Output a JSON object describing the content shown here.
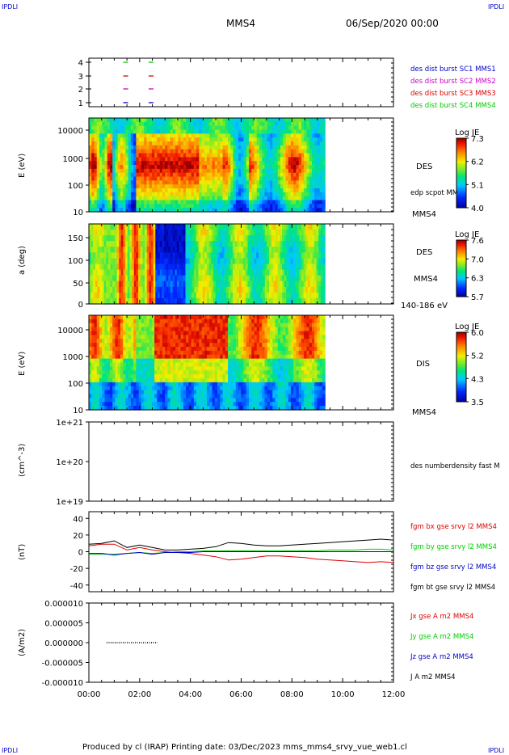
{
  "corner_labels": {
    "top_left": "IPDLI",
    "top_right": "IPDLI",
    "bottom_left": "IPDLI",
    "bottom_right": "IPDLI"
  },
  "header": {
    "spacecraft": "MMS4",
    "date": "06/Sep/2020 00:00"
  },
  "footer": {
    "text": "Produced by cl (IRAP)   Printing date: 03/Dec/2023   mms_mms4_srvy_vue_web1.cl"
  },
  "colors": {
    "red": "#dd0000",
    "green": "#00cc00",
    "blue": "#0000cc",
    "magenta": "#cc00cc",
    "black": "#000000"
  },
  "chart_data": [
    {
      "type": "scatter",
      "panel": "burst availability",
      "ylabel": "",
      "yticks": [
        "4",
        "3",
        "2",
        "1"
      ],
      "ylim": [
        0.6,
        4.4
      ],
      "series": [
        {
          "name": "des dist burst SC1 MMS1",
          "color": "#0000cc",
          "y": 1,
          "x_hours": [
            1.45,
            2.45
          ]
        },
        {
          "name": "des dist burst SC2 MMS2",
          "color": "#cc00cc",
          "y": 2,
          "x_hours": [
            1.45,
            2.45
          ]
        },
        {
          "name": "des dist burst SC3 MMS3",
          "color": "#dd0000",
          "y": 3,
          "x_hours": [
            1.45,
            2.45
          ]
        },
        {
          "name": "des dist burst SC4 MMS4",
          "color": "#00cc00",
          "y": 4,
          "x_hours": [
            1.45,
            2.45
          ]
        }
      ]
    },
    {
      "type": "heatmap",
      "panel": "DES energy spectrogram",
      "ylabel": "E (eV)",
      "yticks": [
        "10000",
        "1000",
        "100",
        "10"
      ],
      "side_labels": [
        "DES",
        "edp scpot MMS4",
        "MMS4"
      ],
      "colorbar": {
        "title": "Log JE",
        "ticks": [
          "7.3",
          "6.2",
          "5.1",
          "4.0"
        ]
      },
      "data_end_hours": 9.3
    },
    {
      "type": "heatmap",
      "panel": "DES pitch angle",
      "ylabel": "a (deg)",
      "yticks": [
        "150",
        "100",
        "50",
        "0"
      ],
      "side_labels": [
        "DES",
        "MMS4",
        "140-186 eV"
      ],
      "colorbar": {
        "title": "Log JE",
        "ticks": [
          "7.6",
          "7.0",
          "6.3",
          "5.7"
        ]
      },
      "data_end_hours": 9.3
    },
    {
      "type": "heatmap",
      "panel": "DIS energy spectrogram",
      "ylabel": "E (eV)",
      "yticks": [
        "10000",
        "1000",
        "100",
        "10"
      ],
      "side_labels": [
        "DIS",
        "MMS4"
      ],
      "colorbar": {
        "title": "Log JE",
        "ticks": [
          "6.0",
          "5.2",
          "4.3",
          "3.5"
        ]
      },
      "data_end_hours": 9.3
    },
    {
      "type": "line",
      "panel": "density",
      "ylabel": "(cm^-3)",
      "yticks": [
        "1e+21",
        "1e+20",
        "1e+19"
      ],
      "series": [
        {
          "name": "des numberdensity fast M",
          "values": []
        }
      ]
    },
    {
      "type": "line",
      "panel": "magnetic field",
      "ylabel": "(nT)",
      "yticks": [
        "40",
        "20",
        "0",
        "-20",
        "-40"
      ],
      "ylim": [
        -48,
        48
      ],
      "x_hours": [
        0,
        0.5,
        1,
        1.5,
        2,
        2.5,
        3,
        3.5,
        4,
        4.5,
        5,
        5.5,
        6,
        6.5,
        7,
        7.5,
        8,
        8.5,
        9,
        9.5,
        10,
        10.5,
        11,
        11.5,
        12
      ],
      "series": [
        {
          "name": "fgm bx gse srvy l2 MMS4",
          "color": "#dd0000",
          "values": [
            7,
            9,
            9,
            2,
            5,
            2,
            0,
            -1,
            -2,
            -4,
            -6,
            -10,
            -9,
            -7,
            -5,
            -5,
            -6,
            -7,
            -9,
            -10,
            -11,
            -12,
            -13,
            -12,
            -13
          ]
        },
        {
          "name": "fgm by gse srvy l2 MMS4",
          "color": "#00cc00",
          "values": [
            -3,
            -3,
            -3,
            -2,
            -1,
            -2,
            -1,
            0,
            0,
            1,
            1,
            1,
            1,
            1,
            1,
            1,
            1,
            1,
            1,
            2,
            2,
            2,
            3,
            3,
            2
          ]
        },
        {
          "name": "fgm bz gse srvy l2 MMS4",
          "color": "#0000cc",
          "values": [
            -2,
            -2,
            -4,
            -2,
            -1,
            -3,
            -1,
            -1,
            -1,
            0,
            0,
            0,
            0,
            0,
            0,
            0,
            0,
            0,
            0,
            0,
            0,
            0,
            0,
            0,
            0
          ]
        },
        {
          "name": "fgm bt gse srvy l2 MMS4",
          "color": "#000000",
          "values": [
            9,
            10,
            13,
            5,
            8,
            5,
            2,
            2,
            3,
            4,
            6,
            11,
            10,
            8,
            7,
            7,
            8,
            9,
            10,
            11,
            12,
            13,
            14,
            15,
            14
          ]
        }
      ]
    },
    {
      "type": "line",
      "panel": "current density",
      "ylabel": "(A/m2)",
      "yticks": [
        "0.000010",
        "0.000005",
        "0.000000",
        "-0.000005",
        "-0.000010"
      ],
      "xticks": [
        "00:00",
        "02:00",
        "04:00",
        "06:00",
        "08:00",
        "10:00",
        "12:00"
      ],
      "ylim": [
        -1e-05,
        1e-05
      ],
      "series": [
        {
          "name": "Jx gse A m2 MMS4",
          "color": "#dd0000"
        },
        {
          "name": "Jy gse A m2 MMS4",
          "color": "#00cc00"
        },
        {
          "name": "Jz gse A m2 MMS4",
          "color": "#0000cc"
        },
        {
          "name": "J A m2 MMS4",
          "color": "#000000"
        }
      ]
    }
  ]
}
